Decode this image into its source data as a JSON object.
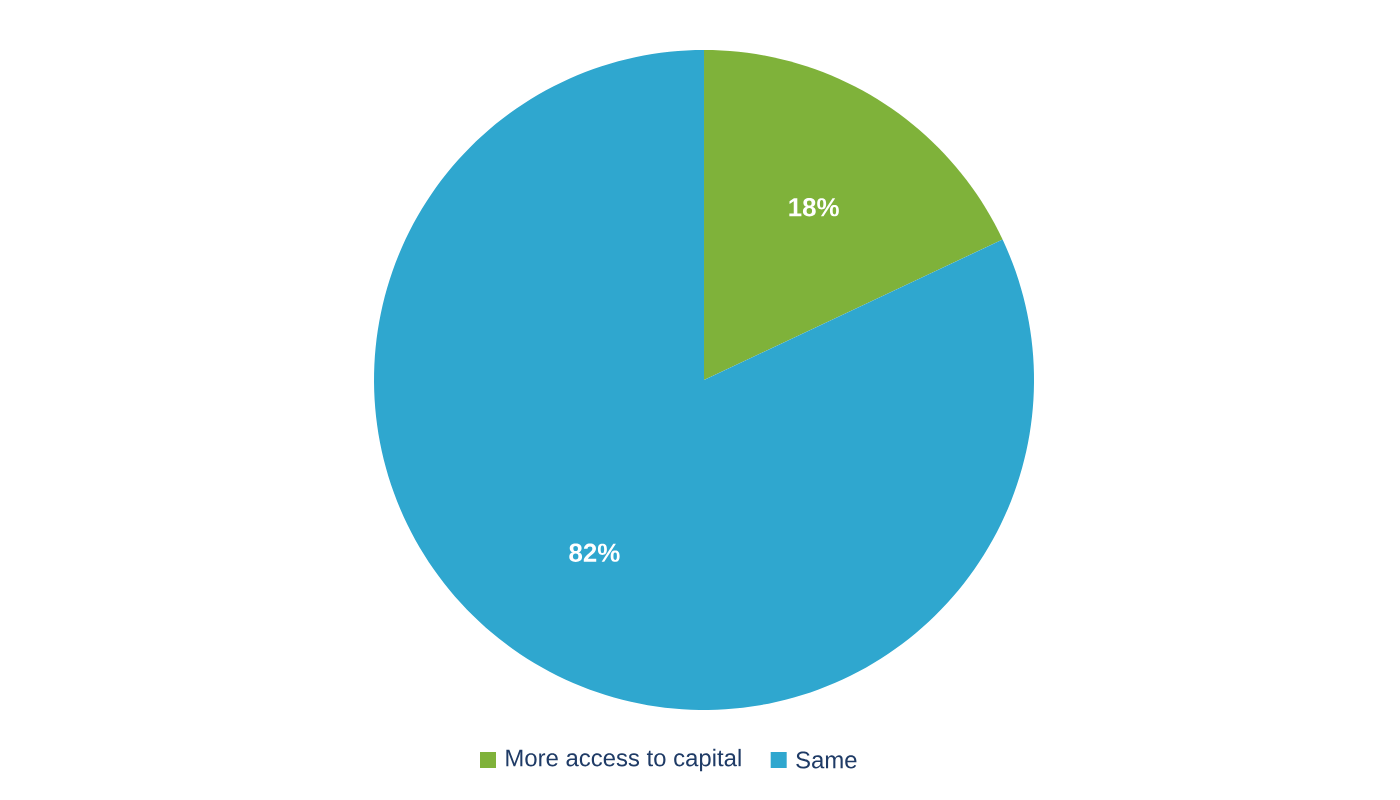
{
  "chart_data": {
    "type": "pie",
    "categories": [
      "More access to capital",
      "Same"
    ],
    "values": [
      18,
      82
    ],
    "colors": [
      "#7fb23a",
      "#2fa7cf"
    ],
    "value_labels": [
      "18%",
      "82%"
    ],
    "legend": "bottom"
  }
}
